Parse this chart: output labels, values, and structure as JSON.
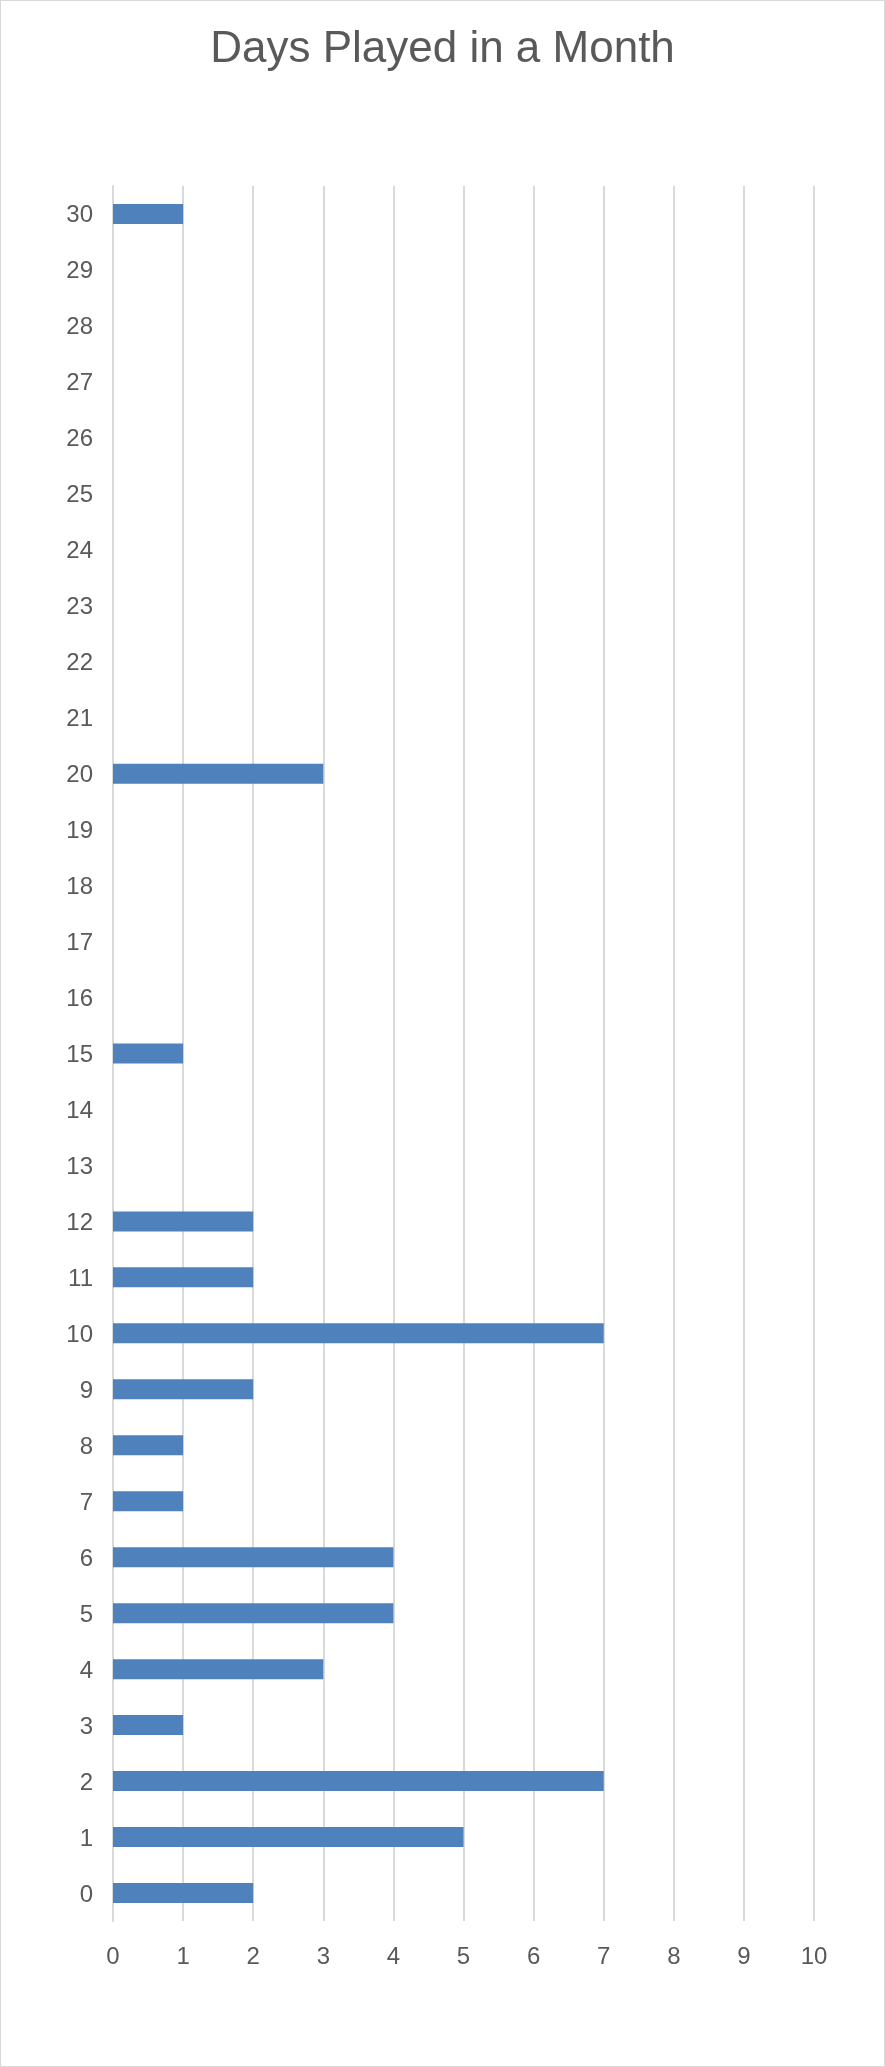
{
  "chart_data": {
    "type": "bar",
    "orientation": "horizontal",
    "title": "Days Played in a Month",
    "categories": [
      "30",
      "29",
      "28",
      "27",
      "26",
      "25",
      "24",
      "23",
      "22",
      "21",
      "20",
      "19",
      "18",
      "17",
      "16",
      "15",
      "14",
      "13",
      "12",
      "11",
      "10",
      "9",
      "8",
      "7",
      "6",
      "5",
      "4",
      "3",
      "2",
      "1",
      "0"
    ],
    "values": [
      1,
      0,
      0,
      0,
      0,
      0,
      0,
      0,
      0,
      0,
      3,
      0,
      0,
      0,
      0,
      1,
      0,
      0,
      2,
      2,
      7,
      2,
      1,
      1,
      4,
      4,
      3,
      1,
      7,
      5,
      2
    ],
    "color": "#4f81bd",
    "xlim": [
      0,
      10
    ],
    "xticks": [
      0,
      1,
      2,
      3,
      4,
      5,
      6,
      7,
      8,
      9,
      10
    ],
    "grid": "x"
  }
}
